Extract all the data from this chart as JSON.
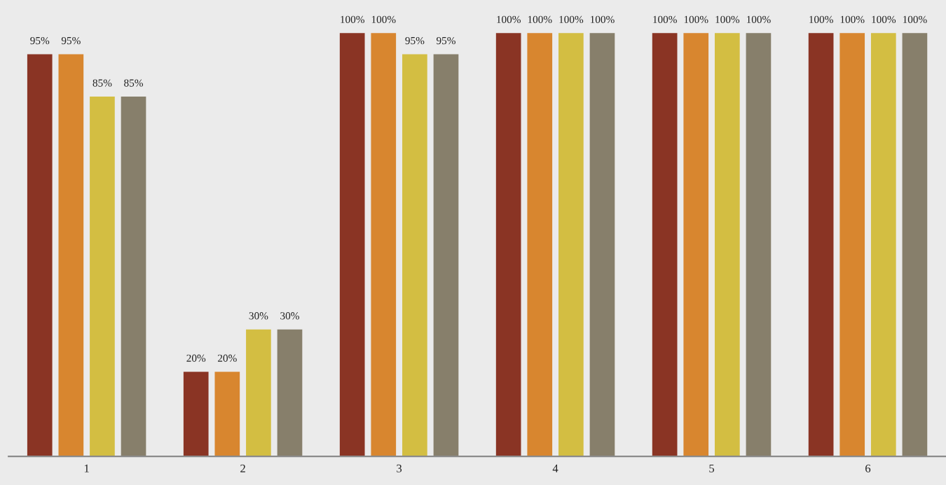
{
  "chart_data": {
    "type": "bar",
    "categories": [
      "1",
      "2",
      "3",
      "4",
      "5",
      "6"
    ],
    "series": [
      {
        "color": "#8a3424",
        "values": [
          95,
          20,
          100,
          100,
          100,
          100
        ],
        "value_labels": [
          "95%",
          "20%",
          "100%",
          "100%",
          "100%",
          "100%"
        ]
      },
      {
        "color": "#d8862f",
        "values": [
          95,
          20,
          100,
          100,
          100,
          100
        ],
        "value_labels": [
          "95%",
          "20%",
          "100%",
          "100%",
          "100%",
          "100%"
        ]
      },
      {
        "color": "#d3be42",
        "values": [
          85,
          30,
          95,
          100,
          100,
          100
        ],
        "value_labels": [
          "85%",
          "30%",
          "95%",
          "100%",
          "100%",
          "100%"
        ]
      },
      {
        "color": "#877f6b",
        "values": [
          85,
          30,
          95,
          100,
          100,
          100
        ],
        "value_labels": [
          "85%",
          "30%",
          "95%",
          "100%",
          "100%",
          "100%"
        ]
      }
    ],
    "grid": false,
    "legend": false
  }
}
